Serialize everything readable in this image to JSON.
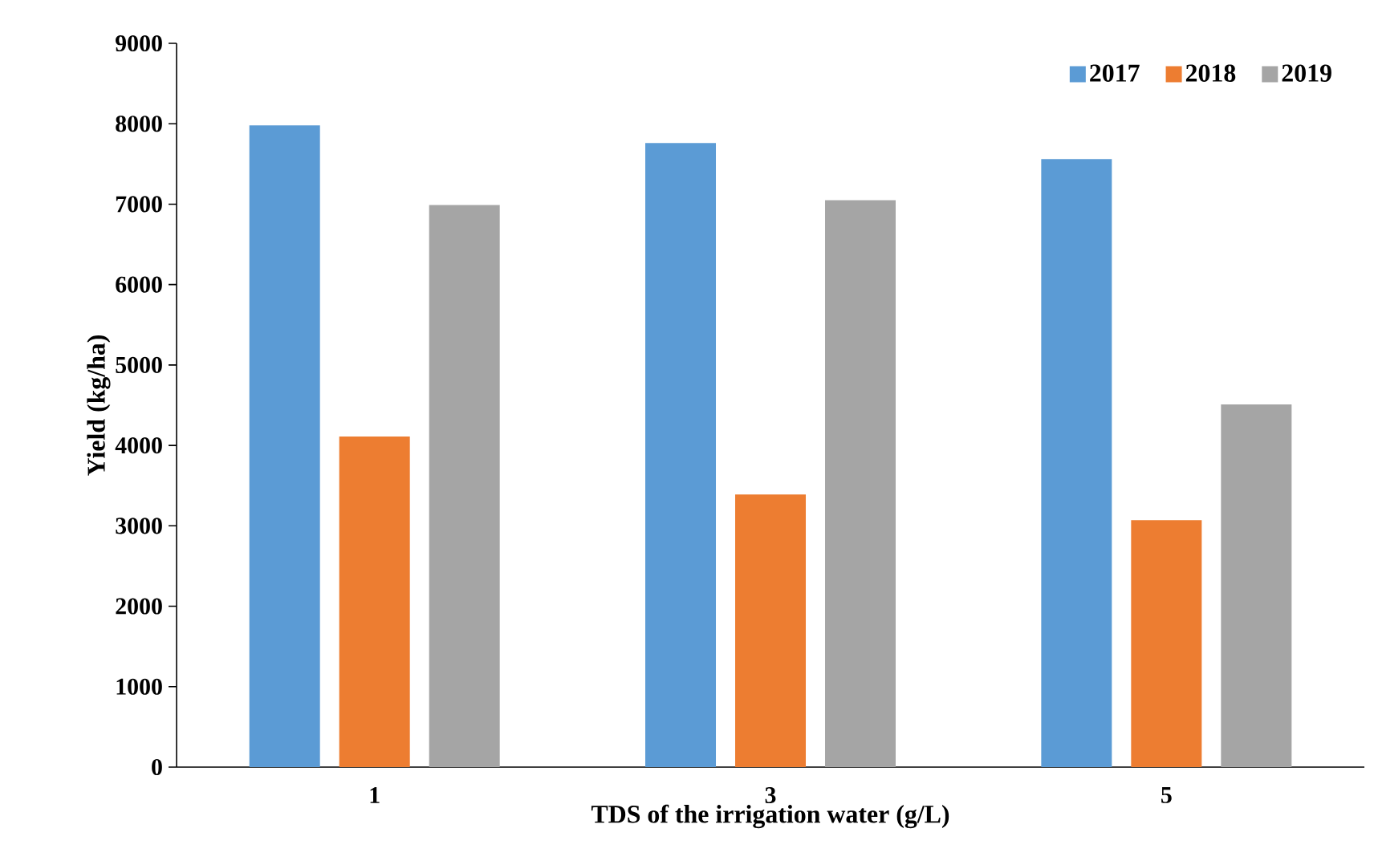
{
  "chart_data": {
    "type": "bar",
    "xlabel": "TDS of the irrigation water (g/L)",
    "ylabel": "Yield (kg/ha)",
    "categories": [
      "1",
      "3",
      "5"
    ],
    "series": [
      {
        "name": "2017",
        "color": "#5b9bd5",
        "values": [
          7980,
          7760,
          7560
        ]
      },
      {
        "name": "2018",
        "color": "#ed7d31",
        "values": [
          4110,
          3390,
          3070
        ]
      },
      {
        "name": "2019",
        "color": "#a5a5a5",
        "values": [
          6990,
          7050,
          4510
        ]
      }
    ],
    "ylim": [
      0,
      9000
    ],
    "yticks": [
      0,
      1000,
      2000,
      3000,
      4000,
      5000,
      6000,
      7000,
      8000,
      9000
    ],
    "grid": false,
    "legend": "top right"
  }
}
